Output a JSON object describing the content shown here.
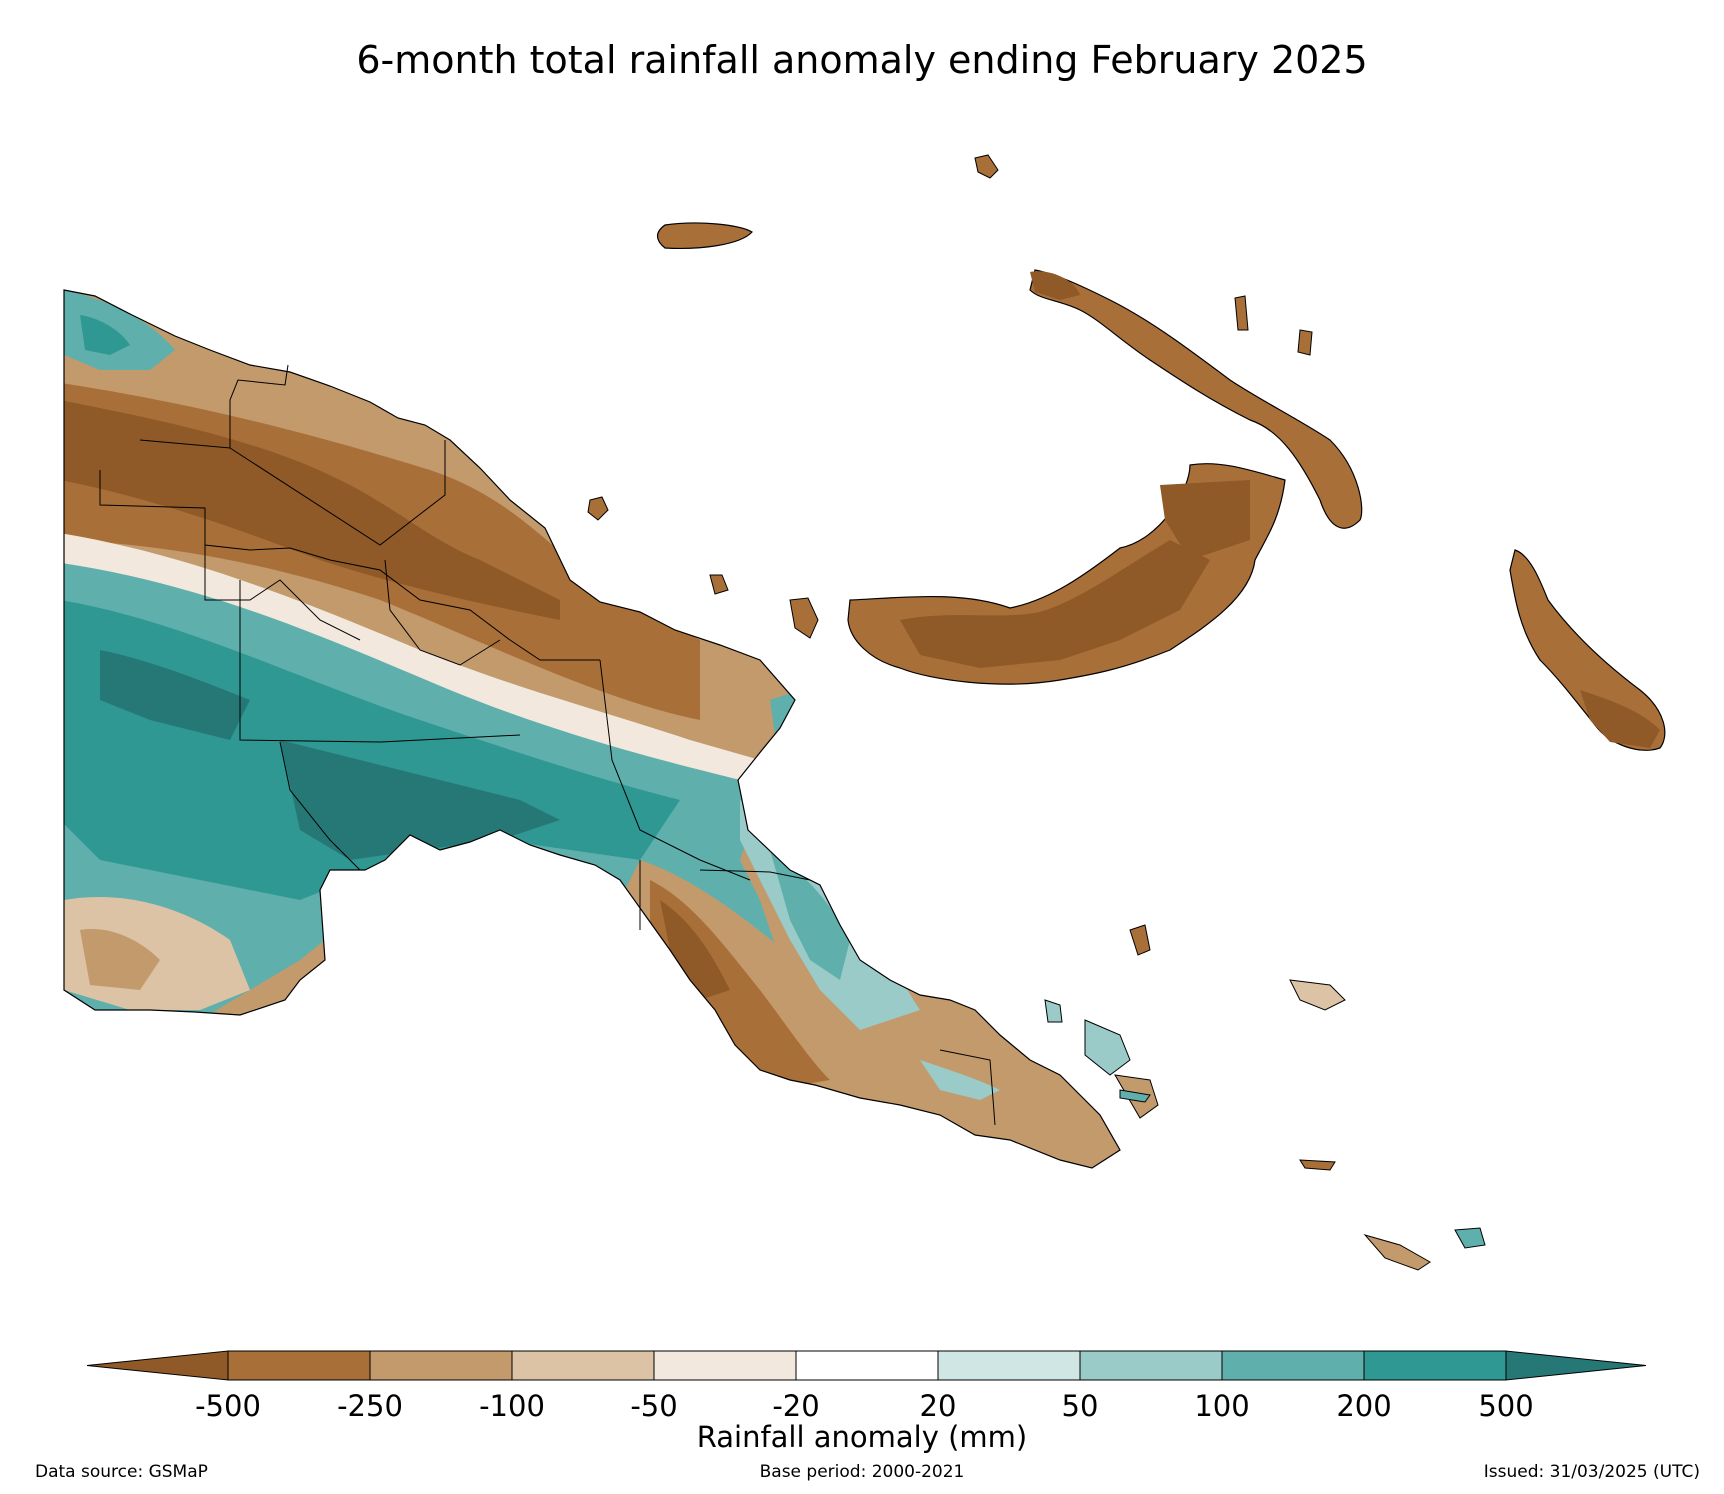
{
  "title": "6-month total rainfall anomaly ending February 2025",
  "legend": {
    "label": "Rainfall anomaly (mm)",
    "ticks": [
      "-500",
      "-250",
      "-100",
      "-50",
      "-20",
      "20",
      "50",
      "100",
      "200",
      "500"
    ],
    "colors": {
      "below_-500": "#8f5a27",
      "-500_-250": "#a96f39",
      "-250_-100": "#c29a6c",
      "-100_-50": "#dcc3a6",
      "-50_-20": "#f2e8dd",
      "-20_20": "#ffffff",
      "20_50": "#cfe6e5",
      "50_100": "#9acbc9",
      "100_200": "#5fb0ac",
      "200_500": "#2f9893",
      "above_500": "#267877"
    }
  },
  "footer": {
    "source": "Data source: GSMaP",
    "base_period": "Base period: 2000-2021",
    "issued": "Issued: 31/03/2025 (UTC)"
  }
}
